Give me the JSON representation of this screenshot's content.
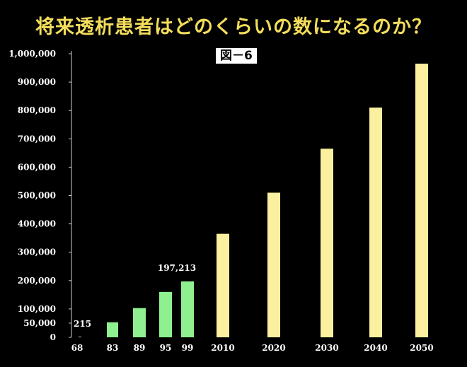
{
  "title": "将来透析患者はどのくらいの数になるのか？",
  "figure_label": "図－6",
  "colors": {
    "background": "#000000",
    "title": "#f3dd5b",
    "historical_bar": "#8ef08e",
    "projected_bar": "#faf0a0",
    "axis": "#cccccc",
    "text": "#ffffff"
  },
  "chart_data": {
    "type": "bar",
    "title": "将来透析患者はどのくらいの数になるのか？",
    "xlabel": "",
    "ylabel": "",
    "ylim": [
      0,
      1000000
    ],
    "yticks": [
      0,
      50000,
      100000,
      200000,
      300000,
      400000,
      500000,
      600000,
      700000,
      800000,
      900000,
      1000000
    ],
    "ytick_labels": [
      "0",
      "50,000",
      "100,000",
      "200,000",
      "300,000",
      "400,000",
      "500,000",
      "600,000",
      "700,000",
      "800,000",
      "900,000",
      "1,000,000"
    ],
    "categories": [
      "68",
      "83",
      "89",
      "95",
      "99",
      "2010",
      "2020",
      "2030",
      "2040",
      "2050"
    ],
    "values": [
      215,
      53000,
      103000,
      160000,
      197213,
      365000,
      510000,
      665000,
      810000,
      965000
    ],
    "bar_groups": [
      "historical",
      "historical",
      "historical",
      "historical",
      "historical",
      "projected",
      "projected",
      "projected",
      "projected",
      "projected"
    ],
    "data_labels": [
      {
        "category": "68",
        "text": "215"
      },
      {
        "category": "99",
        "text": "197,213"
      }
    ],
    "grid": false,
    "legend": "none"
  }
}
